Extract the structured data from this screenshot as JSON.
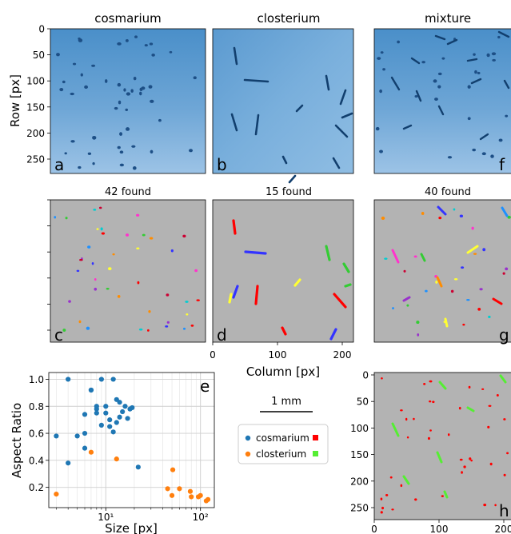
{
  "panels": {
    "a": {
      "title": "cosmarium",
      "letter": "a"
    },
    "b": {
      "title": "closterium",
      "letter": "b"
    },
    "f": {
      "title": "mixture",
      "letter": "f"
    },
    "c": {
      "title": "42 found",
      "letter": "c"
    },
    "d": {
      "title": "15 found",
      "letter": "d"
    },
    "g": {
      "title": "40 found",
      "letter": "g"
    },
    "h": {
      "letter": "h"
    }
  },
  "shared": {
    "ylabel": "Row [px]",
    "xlabel": "Column [px]",
    "row_ticks": [
      "0",
      "50",
      "100",
      "150",
      "200",
      "250"
    ],
    "col_ticks": [
      "0",
      "100",
      "200"
    ]
  },
  "scalebar": {
    "label": "1 mm"
  },
  "legend": {
    "entries": [
      {
        "name": "cosmarium",
        "marker_color": "#1f77b4",
        "swatch_color": "#ff0000"
      },
      {
        "name": "closterium",
        "marker_color": "#ff7f0e",
        "swatch_color": "#55ee33"
      }
    ]
  },
  "colors": {
    "raw_tint": "#3f86c2",
    "segment_background": "#b3b3b3"
  },
  "chart_data": {
    "type": "scatter",
    "panel": "e",
    "letter": "e",
    "xlabel": "Size [px]",
    "ylabel": "Aspect Ratio",
    "xscale": "log",
    "xlim": [
      2.5,
      140
    ],
    "ylim": [
      0.05,
      1.05
    ],
    "xticks": [
      {
        "value": 10,
        "label": "10¹"
      },
      {
        "value": 100,
        "label": "10²"
      }
    ],
    "yticks": [
      0.2,
      0.4,
      0.6,
      0.8,
      1.0
    ],
    "grid": true,
    "series": [
      {
        "name": "cosmarium",
        "color": "#1f77b4",
        "points": [
          [
            3,
            0.58
          ],
          [
            4,
            1.0
          ],
          [
            4,
            0.38
          ],
          [
            5,
            0.58
          ],
          [
            6,
            0.74
          ],
          [
            6,
            0.49
          ],
          [
            6,
            0.6
          ],
          [
            7,
            0.92
          ],
          [
            7,
            0.92
          ],
          [
            8,
            0.8
          ],
          [
            8,
            0.78
          ],
          [
            8,
            0.75
          ],
          [
            9,
            1.0
          ],
          [
            9,
            0.66
          ],
          [
            10,
            0.8
          ],
          [
            10,
            0.75
          ],
          [
            11,
            0.7
          ],
          [
            11,
            0.65
          ],
          [
            12,
            1.0
          ],
          [
            12,
            0.61
          ],
          [
            13,
            0.85
          ],
          [
            13,
            0.68
          ],
          [
            14,
            0.83
          ],
          [
            14,
            0.72
          ],
          [
            15,
            0.76
          ],
          [
            16,
            0.8
          ],
          [
            17,
            0.71
          ],
          [
            18,
            0.78
          ],
          [
            19,
            0.79
          ],
          [
            22,
            0.35
          ]
        ]
      },
      {
        "name": "closterium",
        "color": "#ff7f0e",
        "points": [
          [
            3,
            0.15
          ],
          [
            7,
            0.46
          ],
          [
            13,
            0.41
          ],
          [
            45,
            0.19
          ],
          [
            50,
            0.14
          ],
          [
            51,
            0.33
          ],
          [
            60,
            0.19
          ],
          [
            78,
            0.17
          ],
          [
            80,
            0.13
          ],
          [
            95,
            0.13
          ],
          [
            100,
            0.14
          ],
          [
            115,
            0.1
          ],
          [
            120,
            0.11
          ]
        ]
      }
    ]
  }
}
